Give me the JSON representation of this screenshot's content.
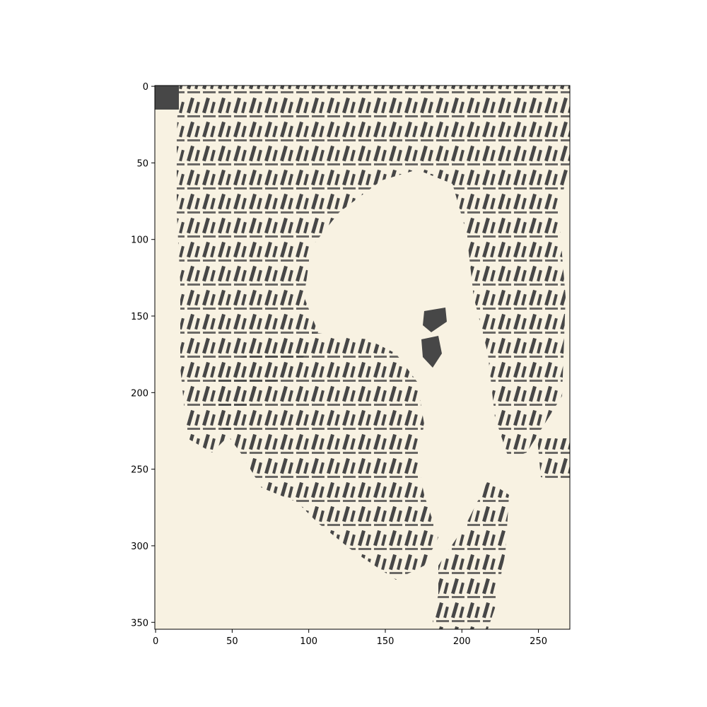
{
  "figure": {
    "background": "#ffffff",
    "paper_color": "#f8f2e2",
    "ink_color": "#474747",
    "image_width_units": 271,
    "image_height_units": 355
  },
  "axes": {
    "x_ticks": [
      {
        "value": 0,
        "label": "0"
      },
      {
        "value": 50,
        "label": "50"
      },
      {
        "value": 100,
        "label": "100"
      },
      {
        "value": 150,
        "label": "150"
      },
      {
        "value": 200,
        "label": "200"
      },
      {
        "value": 250,
        "label": "250"
      }
    ],
    "y_ticks": [
      {
        "value": 0,
        "label": "0"
      },
      {
        "value": 50,
        "label": "50"
      },
      {
        "value": 100,
        "label": "100"
      },
      {
        "value": 150,
        "label": "150"
      },
      {
        "value": 200,
        "label": "200"
      },
      {
        "value": 250,
        "label": "250"
      },
      {
        "value": 300,
        "label": "300"
      },
      {
        "value": 350,
        "label": "350"
      }
    ]
  }
}
